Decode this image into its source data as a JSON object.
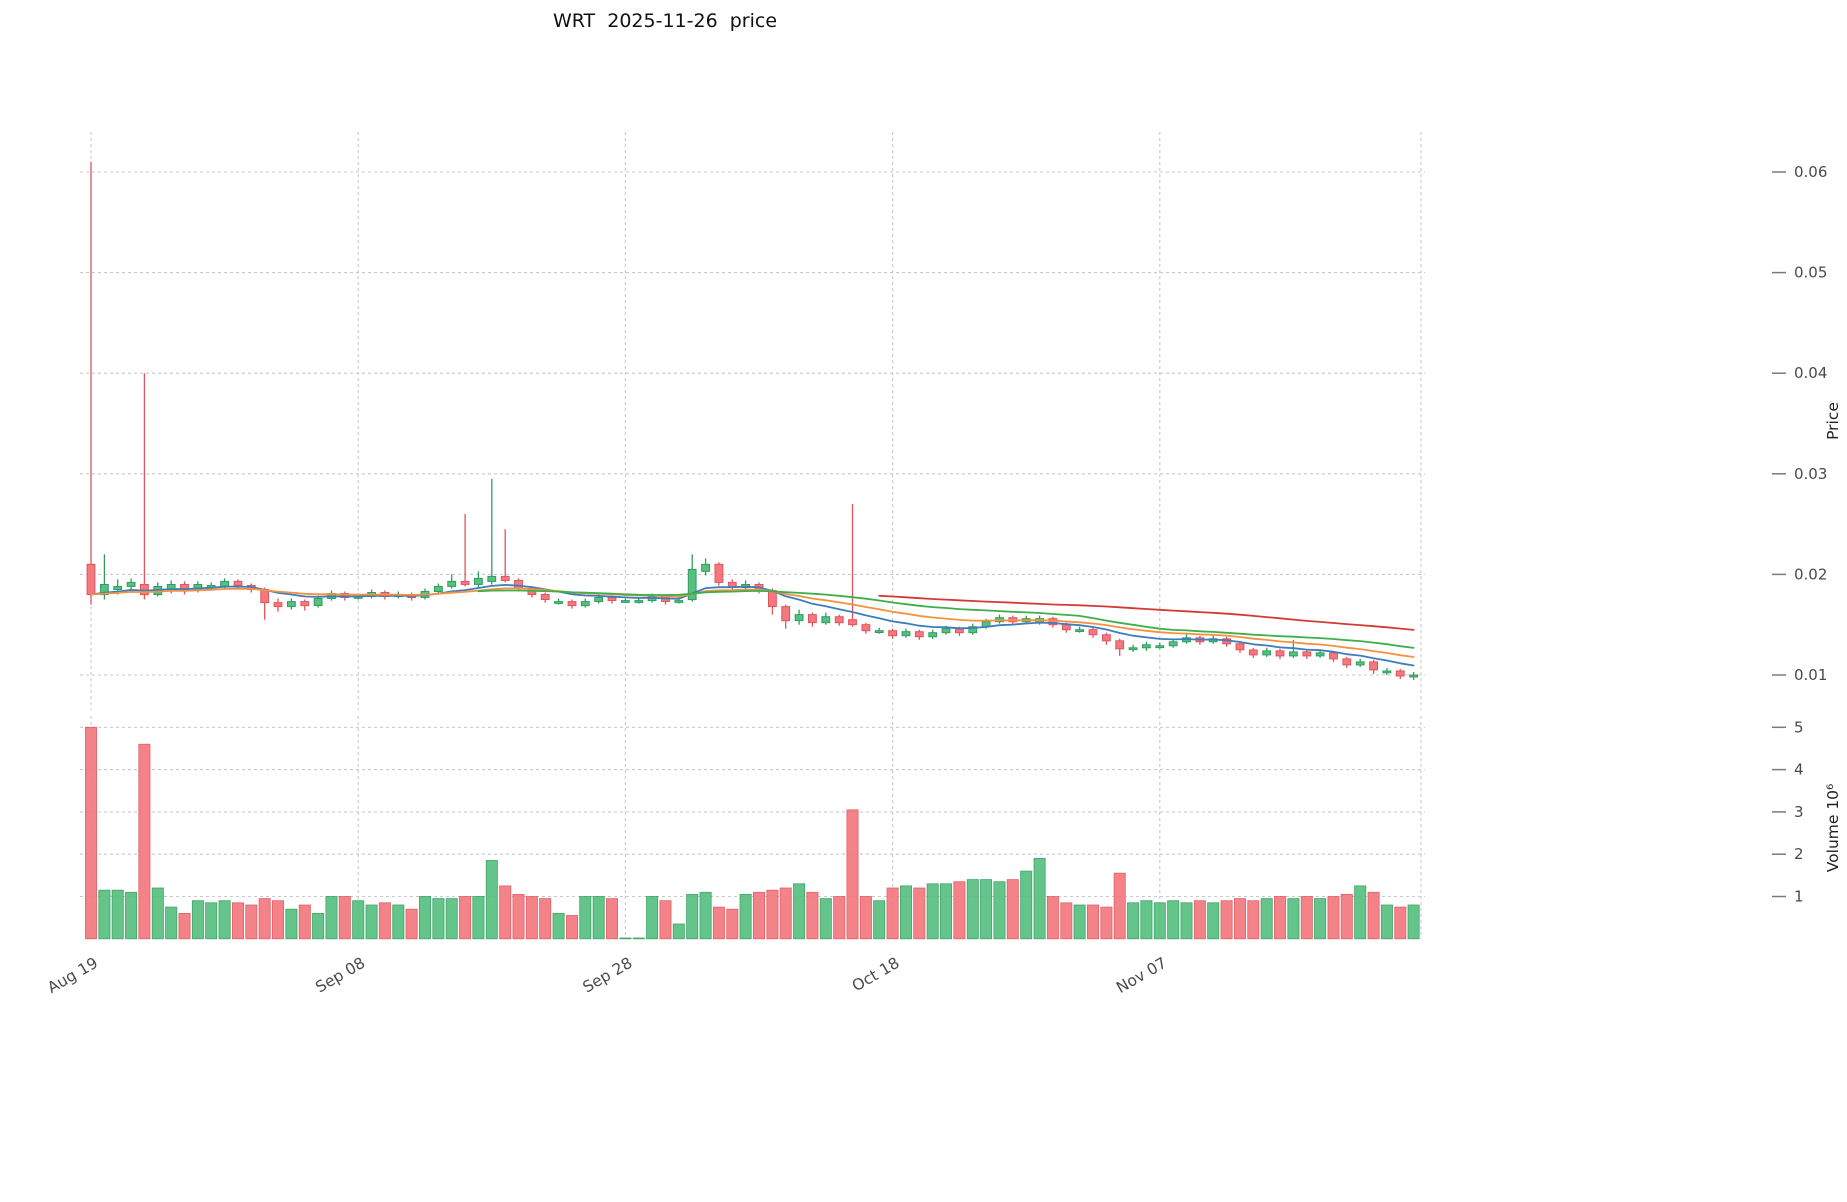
{
  "title": "WRT  2025-11-26  price",
  "axes": {
    "x_tick_labels": [
      "Aug 19",
      "Sep 08",
      "Sep 28",
      "Oct 18",
      "Nov 07"
    ],
    "x_tick_days": [
      0,
      20,
      40,
      60,
      80
    ],
    "price_axis_label": "Price",
    "volume_axis_label": "Volume  10⁶",
    "price_ticks": [
      0.01,
      0.02,
      0.03,
      0.04,
      0.05,
      0.06
    ],
    "volume_ticks": [
      1,
      2,
      3,
      4,
      5
    ],
    "grid": true
  },
  "colors": {
    "up": "#57c081",
    "up_edge": "#2f9e5d",
    "down": "#f3797f",
    "down_edge": "#e0545c",
    "ema10": "#3d7dbc",
    "ema20": "#f59140",
    "sma30": "#3fae4c",
    "sma60": "#d43a34",
    "grid": "#c9c9c9",
    "tick": "#7a7a7a",
    "text": "#4a4a4a"
  },
  "chart_data": {
    "type": "candlestick+volume",
    "symbol": "WRT",
    "as_of_date": "2025-11-26",
    "start_date": "2025-08-19",
    "end_date": "2025-11-26",
    "frequency": "daily",
    "ylim_price": [
      0.0065,
      0.0645
    ],
    "ylim_volume": [
      0,
      5.3
    ],
    "open": [
      0.021,
      0.018,
      0.0185,
      0.0188,
      0.019,
      0.018,
      0.0185,
      0.019,
      0.0184,
      0.0189,
      0.0188,
      0.0193,
      0.0189,
      0.0185,
      0.0172,
      0.0168,
      0.0173,
      0.0169,
      0.0176,
      0.0181,
      0.0178,
      0.0178,
      0.0182,
      0.0178,
      0.018,
      0.0177,
      0.0183,
      0.0188,
      0.0193,
      0.019,
      0.0193,
      0.0198,
      0.0194,
      0.0186,
      0.018,
      0.0173,
      0.0173,
      0.0169,
      0.0173,
      0.0177,
      0.0174,
      0.0174,
      0.0174,
      0.0178,
      0.0174,
      0.0175,
      0.0203,
      0.021,
      0.0192,
      0.0187,
      0.019,
      0.0184,
      0.0168,
      0.0154,
      0.016,
      0.0152,
      0.0158,
      0.0155,
      0.015,
      0.0144,
      0.0144,
      0.0139,
      0.0143,
      0.0138,
      0.0142,
      0.0146,
      0.0142,
      0.0148,
      0.0153,
      0.0157,
      0.0153,
      0.0152,
      0.0156,
      0.015,
      0.0145,
      0.0145,
      0.014,
      0.0134,
      0.0127,
      0.0127,
      0.0129,
      0.0129,
      0.0133,
      0.0137,
      0.0133,
      0.0136,
      0.0131,
      0.0125,
      0.012,
      0.0124,
      0.0119,
      0.0123,
      0.0119,
      0.0122,
      0.0116,
      0.011,
      0.0113,
      0.0104,
      0.0104,
      0.0098
    ],
    "high": [
      0.061,
      0.022,
      0.0195,
      0.0196,
      0.04,
      0.0192,
      0.0194,
      0.0193,
      0.0193,
      0.0192,
      0.0196,
      0.0195,
      0.0191,
      0.0187,
      0.0176,
      0.0176,
      0.0175,
      0.0179,
      0.0184,
      0.0183,
      0.0181,
      0.0185,
      0.0184,
      0.0183,
      0.0182,
      0.0186,
      0.0191,
      0.02,
      0.026,
      0.0203,
      0.0295,
      0.0245,
      0.0196,
      0.0188,
      0.0182,
      0.0176,
      0.0175,
      0.0176,
      0.018,
      0.0179,
      0.0176,
      0.0177,
      0.0181,
      0.018,
      0.0177,
      0.022,
      0.0216,
      0.0212,
      0.0195,
      0.0194,
      0.0192,
      0.0186,
      0.017,
      0.0165,
      0.0162,
      0.0162,
      0.016,
      0.027,
      0.0152,
      0.0147,
      0.0146,
      0.0146,
      0.0145,
      0.0145,
      0.0149,
      0.0148,
      0.0151,
      0.0156,
      0.016,
      0.0159,
      0.0159,
      0.0159,
      0.0158,
      0.0152,
      0.0148,
      0.0147,
      0.0142,
      0.0136,
      0.013,
      0.0133,
      0.0132,
      0.0136,
      0.0142,
      0.0139,
      0.0139,
      0.0138,
      0.0133,
      0.0127,
      0.0127,
      0.0126,
      0.0135,
      0.0125,
      0.0125,
      0.0124,
      0.0118,
      0.0116,
      0.0115,
      0.0107,
      0.0106,
      0.0103
    ],
    "low": [
      0.017,
      0.0175,
      0.018,
      0.0182,
      0.0175,
      0.0178,
      0.0181,
      0.018,
      0.0182,
      0.0185,
      0.0186,
      0.0186,
      0.0182,
      0.0155,
      0.0163,
      0.0165,
      0.0164,
      0.0167,
      0.0174,
      0.0174,
      0.0175,
      0.0176,
      0.0175,
      0.0176,
      0.0174,
      0.0175,
      0.0181,
      0.0186,
      0.0188,
      0.0187,
      0.019,
      0.0192,
      0.0183,
      0.0177,
      0.0172,
      0.017,
      0.0166,
      0.0167,
      0.0171,
      0.0171,
      0.0172,
      0.0171,
      0.0172,
      0.017,
      0.0171,
      0.0173,
      0.0199,
      0.0189,
      0.0184,
      0.0185,
      0.0181,
      0.016,
      0.0146,
      0.015,
      0.0148,
      0.015,
      0.0149,
      0.0148,
      0.0141,
      0.0141,
      0.0136,
      0.0137,
      0.0135,
      0.0136,
      0.014,
      0.0139,
      0.014,
      0.0146,
      0.0151,
      0.015,
      0.0151,
      0.015,
      0.0147,
      0.0142,
      0.0142,
      0.0137,
      0.013,
      0.0119,
      0.0123,
      0.0124,
      0.0126,
      0.0127,
      0.0131,
      0.013,
      0.0131,
      0.0128,
      0.0122,
      0.0117,
      0.0118,
      0.0116,
      0.0117,
      0.0116,
      0.0117,
      0.0113,
      0.0107,
      0.0108,
      0.0101,
      0.01,
      0.0096,
      0.0095
    ],
    "close": [
      0.018,
      0.019,
      0.0188,
      0.0192,
      0.018,
      0.0188,
      0.019,
      0.0184,
      0.019,
      0.0189,
      0.0193,
      0.0189,
      0.0185,
      0.0172,
      0.0168,
      0.0173,
      0.0169,
      0.0176,
      0.0181,
      0.0177,
      0.0178,
      0.0182,
      0.0178,
      0.018,
      0.0177,
      0.0183,
      0.0188,
      0.0193,
      0.019,
      0.0196,
      0.0198,
      0.0194,
      0.0186,
      0.018,
      0.0175,
      0.0173,
      0.0169,
      0.0173,
      0.0177,
      0.0174,
      0.0174,
      0.0174,
      0.0178,
      0.0173,
      0.0174,
      0.0205,
      0.021,
      0.0192,
      0.0187,
      0.019,
      0.0184,
      0.0168,
      0.0154,
      0.016,
      0.0152,
      0.0158,
      0.0152,
      0.015,
      0.0144,
      0.0144,
      0.0139,
      0.0143,
      0.0138,
      0.0142,
      0.0146,
      0.0142,
      0.0148,
      0.0153,
      0.0157,
      0.0153,
      0.0156,
      0.0156,
      0.015,
      0.0145,
      0.0145,
      0.014,
      0.0134,
      0.0126,
      0.0127,
      0.013,
      0.0129,
      0.0133,
      0.0137,
      0.0133,
      0.0136,
      0.0131,
      0.0125,
      0.012,
      0.0124,
      0.0119,
      0.0123,
      0.0119,
      0.0122,
      0.0116,
      0.011,
      0.0113,
      0.0105,
      0.0104,
      0.0099,
      0.01
    ],
    "volume": [
      5.0,
      1.15,
      1.15,
      1.1,
      4.6,
      1.2,
      0.75,
      0.6,
      0.9,
      0.85,
      0.9,
      0.85,
      0.8,
      0.95,
      0.9,
      0.7,
      0.8,
      0.6,
      1.0,
      1.0,
      0.9,
      0.8,
      0.85,
      0.8,
      0.7,
      1.0,
      0.95,
      0.95,
      1.0,
      1.0,
      1.85,
      1.25,
      1.05,
      1.0,
      0.95,
      0.6,
      0.55,
      1.0,
      1.0,
      0.95,
      0.02,
      0.02,
      1.0,
      0.9,
      0.35,
      1.05,
      1.1,
      0.75,
      0.7,
      1.05,
      1.1,
      1.15,
      1.2,
      1.3,
      1.1,
      0.95,
      1.0,
      3.05,
      1.0,
      0.9,
      1.2,
      1.25,
      1.2,
      1.3,
      1.3,
      1.35,
      1.4,
      1.4,
      1.35,
      1.4,
      1.6,
      1.9,
      1.0,
      0.85,
      0.8,
      0.8,
      0.75,
      1.55,
      0.85,
      0.9,
      0.85,
      0.9,
      0.85,
      0.9,
      0.85,
      0.9,
      0.95,
      0.9,
      0.95,
      1.0,
      0.95,
      1.0,
      0.95,
      1.0,
      1.05,
      1.25,
      1.1,
      0.8,
      0.75,
      0.8
    ],
    "overlays": [
      {
        "name": "ema10",
        "type": "ema",
        "period": 10,
        "color_key": "ema10"
      },
      {
        "name": "ema20",
        "type": "ema",
        "period": 20,
        "color_key": "ema20"
      },
      {
        "name": "sma30",
        "type": "sma",
        "period": 30,
        "color_key": "sma30"
      },
      {
        "name": "sma60",
        "type": "sma",
        "period": 60,
        "color_key": "sma60"
      }
    ]
  }
}
